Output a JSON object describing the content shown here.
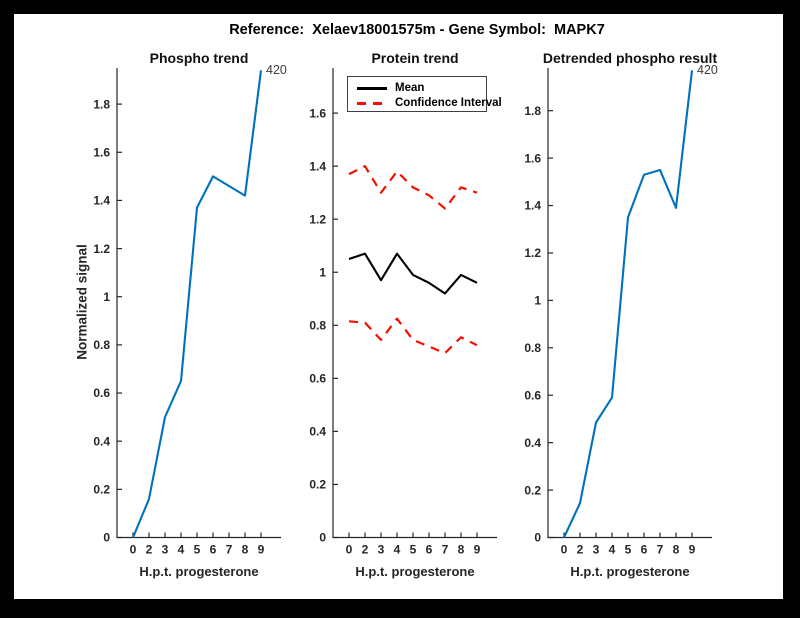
{
  "figure": {
    "background": "#000000",
    "canvas": "#ffffff",
    "title": "Reference:  Xelaev18001575m - Gene Symbol:  MAPK7"
  },
  "axes": {
    "axis_color": "#262626",
    "tick_label_color": "#262626",
    "x_label": "H.p.t. progesterone",
    "x_tick_labels": [
      "0",
      "2",
      "3",
      "4",
      "5",
      "6",
      "7",
      "8",
      "9"
    ],
    "x_values": [
      0,
      2,
      3,
      4,
      5,
      6,
      7,
      8,
      9
    ]
  },
  "chart_data": [
    {
      "type": "line",
      "title": "Phospho trend",
      "ylabel": "Normalized signal",
      "xlabel": "H.p.t. progesterone",
      "x": [
        0,
        2,
        3,
        4,
        5,
        6,
        7,
        8,
        9
      ],
      "ylim": [
        0,
        1.95
      ],
      "yticks": [
        "0",
        "0.2",
        "0.4",
        "0.6",
        "0.8",
        "1",
        "1.2",
        "1.4",
        "1.6",
        "1.8"
      ],
      "grid": false,
      "series": [
        {
          "id": "phospho",
          "color": "#0072BD",
          "style": "solid",
          "values": [
            0,
            0.16,
            0.5,
            0.65,
            1.37,
            1.5,
            1.46,
            1.42,
            1.94
          ]
        }
      ],
      "annotation": {
        "text": "420",
        "at_point": 8
      }
    },
    {
      "type": "line",
      "title": "Protein trend",
      "xlabel": "H.p.t. progesterone",
      "x": [
        0,
        2,
        3,
        4,
        5,
        6,
        7,
        8,
        9
      ],
      "ylim": [
        0,
        1.77
      ],
      "yticks": [
        "0",
        "0.2",
        "0.4",
        "0.6",
        "0.8",
        "1",
        "1.2",
        "1.4",
        "1.6"
      ],
      "grid": false,
      "series": [
        {
          "id": "mean",
          "color": "#000000",
          "style": "solid",
          "values": [
            1.05,
            1.07,
            0.97,
            1.07,
            0.99,
            0.96,
            0.92,
            0.99,
            0.96
          ]
        },
        {
          "id": "ci-upper",
          "color": "#F40F00",
          "style": "dashed",
          "values": [
            1.37,
            1.4,
            1.3,
            1.38,
            1.32,
            1.29,
            1.24,
            1.32,
            1.3
          ]
        },
        {
          "id": "ci-lower",
          "color": "#F40F00",
          "style": "dashed",
          "values": [
            0.815,
            0.81,
            0.745,
            0.825,
            0.745,
            0.72,
            0.695,
            0.755,
            0.725
          ]
        }
      ],
      "legend": {
        "position": "upper-left",
        "entries": [
          {
            "label": "Mean",
            "color": "#000000",
            "style": "solid"
          },
          {
            "label": "Confidence Interval",
            "color": "#F40F00",
            "style": "dashed"
          }
        ]
      }
    },
    {
      "type": "line",
      "title": "Detrended phospho result",
      "xlabel": "H.p.t. progesterone",
      "x": [
        0,
        2,
        3,
        4,
        5,
        6,
        7,
        8,
        9
      ],
      "ylim": [
        0,
        1.98
      ],
      "yticks": [
        "0",
        "0.2",
        "0.4",
        "0.6",
        "0.8",
        "1",
        "1.2",
        "1.4",
        "1.6",
        "1.8"
      ],
      "grid": false,
      "series": [
        {
          "id": "detrended-phospho",
          "color": "#0072BD",
          "style": "solid",
          "values": [
            0,
            0.145,
            0.485,
            0.59,
            1.35,
            1.53,
            1.55,
            1.39,
            1.97
          ]
        }
      ],
      "annotation": {
        "text": "420",
        "at_point": 8
      }
    }
  ]
}
